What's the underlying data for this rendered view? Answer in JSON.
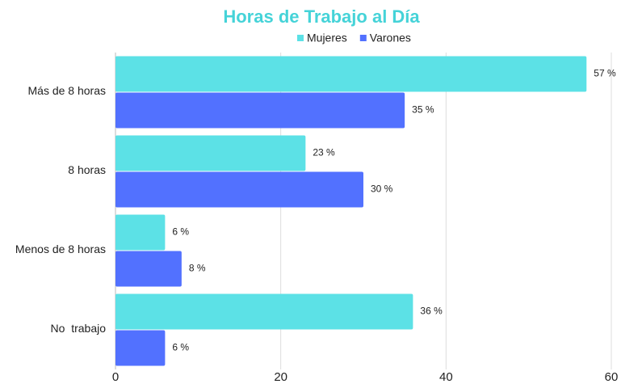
{
  "chart_data": {
    "type": "hbar",
    "title": "Horas de Trabajo al Día",
    "categories": [
      "Más de 8 horas",
      "8 horas",
      "Menos de 8 horas",
      "No  trabajo"
    ],
    "series": [
      {
        "name": "Mujeres",
        "color": "#5ce1e6",
        "values": [
          57,
          23,
          6,
          36
        ],
        "value_labels": [
          "57 %",
          "23 %",
          "6 %",
          "36 %"
        ]
      },
      {
        "name": "Varones",
        "color": "#5271ff",
        "values": [
          35,
          30,
          8,
          6
        ],
        "value_labels": [
          "35 %",
          "30 %",
          "8 %",
          "6 %"
        ]
      }
    ],
    "xlim": [
      0,
      60
    ],
    "xticks": [
      0,
      20,
      40,
      60
    ],
    "grid": true,
    "legend": "top"
  }
}
